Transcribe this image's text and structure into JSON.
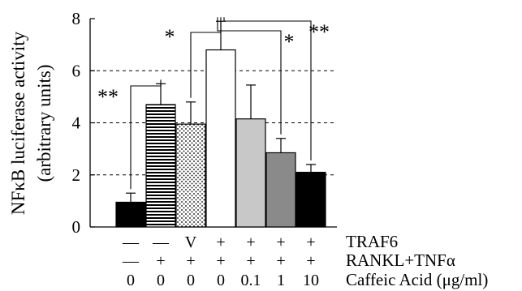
{
  "chart_data": {
    "type": "bar",
    "ylabel_line1": "NFκB luciferase activity",
    "ylabel_line2": "(arbitrary units)",
    "ylim": [
      0,
      8
    ],
    "yticks": [
      "0",
      "2",
      "4",
      "6",
      "8"
    ],
    "grid": "dashed horizontal at 2, 4, 6",
    "values": [
      0.95,
      4.7,
      3.95,
      6.8,
      4.15,
      2.85,
      2.1
    ],
    "errors": [
      0.35,
      0.8,
      0.85,
      1.1,
      1.3,
      0.55,
      0.3
    ],
    "bar_styles": [
      "solid-black",
      "horizontal-stripes",
      "dotted",
      "white",
      "light-gray",
      "dark-gray",
      "solid-black"
    ],
    "condition_rows": [
      {
        "label": "TRAF6",
        "values": [
          "—",
          "—",
          "V",
          "+",
          "+",
          "+",
          "+"
        ]
      },
      {
        "label": "RANKL+TNFα",
        "values": [
          "—",
          "+",
          "+",
          "+",
          "+",
          "+",
          "+"
        ]
      },
      {
        "label": "Caffeic Acid (μg/ml)",
        "values": [
          "0",
          "0",
          "0",
          "0",
          "0.1",
          "1",
          "10"
        ]
      }
    ],
    "significance": [
      {
        "from": 0,
        "to": 1,
        "label": "**"
      },
      {
        "from": 2,
        "to": 3,
        "label": "*"
      },
      {
        "from": 3,
        "to": 5,
        "label": "*"
      },
      {
        "from": 3,
        "to": 6,
        "label": "**"
      }
    ]
  }
}
